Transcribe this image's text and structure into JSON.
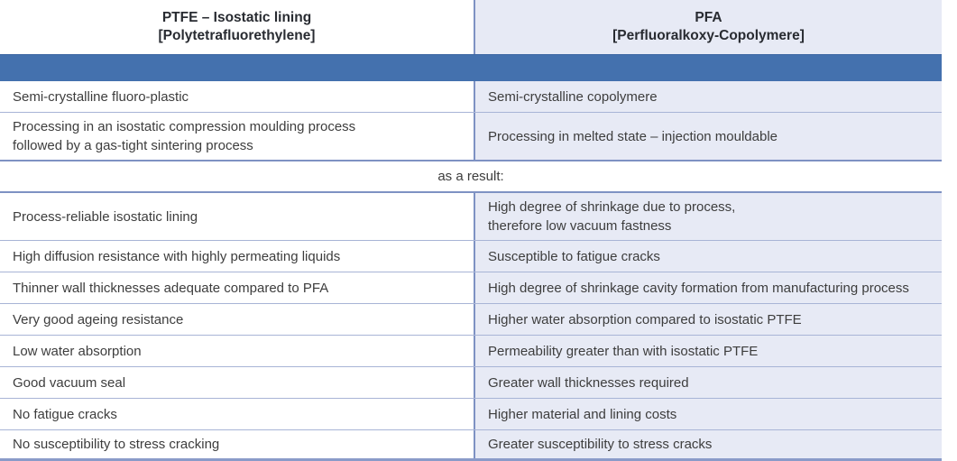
{
  "colors": {
    "bar_blue": "#4471ae",
    "right_column_bg": "#e7eaf5",
    "left_column_bg": "#ffffff",
    "thin_border": "#a8b4d6",
    "thick_border": "#7e92c3",
    "body_text": "#3d3d3d",
    "header_text": "#282b31"
  },
  "header": {
    "left": "PTFE – Isostatic lining\n[Polytetrafluorethylene]",
    "right": "PFA\n[Perfluoralkoxy-Copolymere]"
  },
  "properties_rows": [
    {
      "left": "Semi-crystalline fluoro-plastic",
      "right": "Semi-crystalline copolymere"
    },
    {
      "left": "Processing in an isostatic compression moulding process\nfollowed by a gas-tight sintering process",
      "right": "Processing in melted state – injection mouldable"
    }
  ],
  "result_divider_label": "as a result:",
  "result_rows": [
    {
      "left": "Process-reliable isostatic lining",
      "right": "High degree of shrinkage due to process,\ntherefore low vacuum fastness"
    },
    {
      "left": "High diffusion resistance with highly permeating liquids",
      "right": "Susceptible to fatigue cracks"
    },
    {
      "left": "Thinner wall thicknesses adequate compared to PFA",
      "right": "High degree of shrinkage cavity formation from manufacturing process"
    },
    {
      "left": "Very good ageing resistance",
      "right": "Higher water absorption compared to isostatic PTFE"
    },
    {
      "left": "Low water absorption",
      "right": "Permeability greater than with isostatic PTFE"
    },
    {
      "left": "Good vacuum seal",
      "right": "Greater wall thicknesses required"
    },
    {
      "left": "No fatigue cracks",
      "right": "Higher material and lining costs"
    },
    {
      "left": "No susceptibility to stress cracking",
      "right": "Greater susceptibility to stress cracks"
    }
  ]
}
